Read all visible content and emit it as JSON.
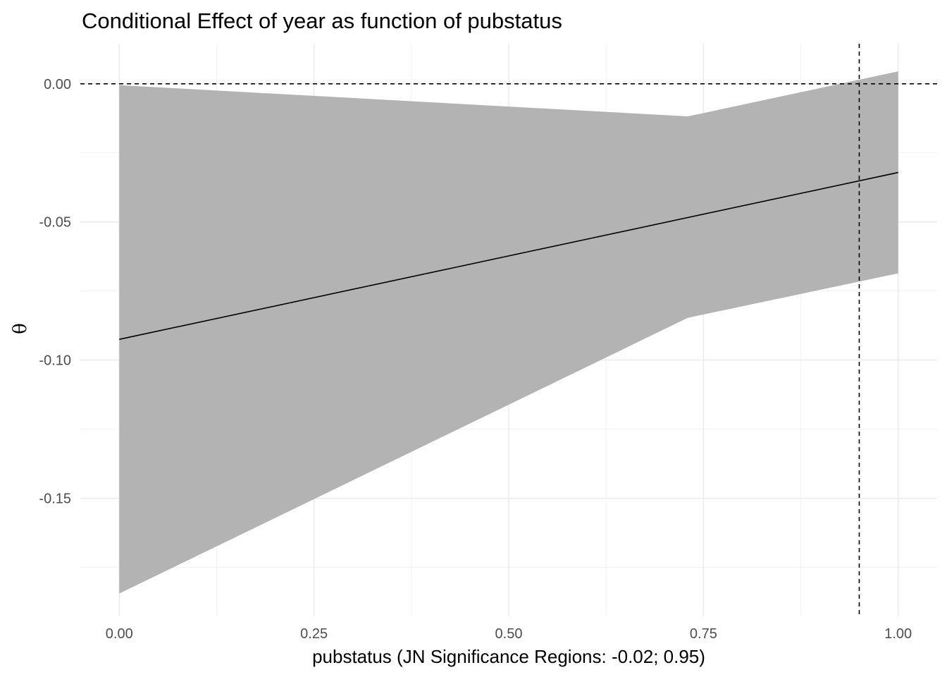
{
  "chart_data": {
    "type": "line",
    "title": "Conditional Effect of year as function of pubstatus",
    "xlabel": "pubstatus (JN Significance Regions: -0.02; 0.95)",
    "ylabel": "θ",
    "xlim": [
      -0.05,
      1.05
    ],
    "ylim": [
      -0.1925,
      0.0145
    ],
    "x_ticks": [
      0.0,
      0.25,
      0.5,
      0.75,
      1.0
    ],
    "x_tick_labels": [
      "0.00",
      "0.25",
      "0.50",
      "0.75",
      "1.00"
    ],
    "y_ticks": [
      0.0,
      -0.05,
      -0.1,
      -0.15
    ],
    "y_tick_labels": [
      "0.00",
      "-0.05",
      "-0.10",
      "-0.15"
    ],
    "grid": true,
    "series": [
      {
        "x": [
          0.0,
          1.0
        ],
        "y": [
          -0.0925,
          -0.0321
        ],
        "color": "#000000"
      }
    ],
    "confidence_band": {
      "x": [
        0.0,
        0.73,
        1.0
      ],
      "lower": [
        -0.1845,
        -0.0847,
        -0.0686
      ],
      "upper": [
        -0.0005,
        -0.0118,
        0.0045
      ],
      "color": "#b3b3b3"
    },
    "reference_lines": {
      "horizontal_y": 0.0,
      "vertical_x": 0.95,
      "style": "dashed"
    }
  }
}
